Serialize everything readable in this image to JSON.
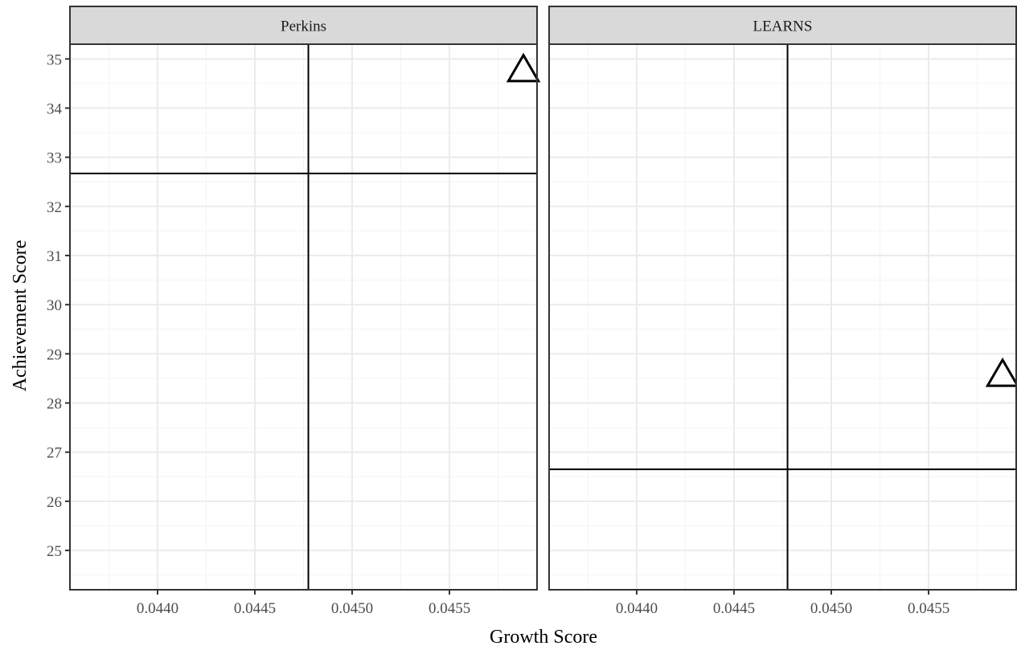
{
  "chart_data": {
    "type": "scatter",
    "xlabel": "Growth Score",
    "ylabel": "Achievement Score",
    "xlim": [
      0.04355,
      0.04595
    ],
    "ylim": [
      24.2,
      35.3
    ],
    "x_ticks": [
      "0.0440",
      "0.0445",
      "0.0450",
      "0.0455"
    ],
    "y_ticks": [
      "25",
      "26",
      "27",
      "28",
      "29",
      "30",
      "31",
      "32",
      "33",
      "34",
      "35"
    ],
    "grid": true,
    "point_shape": "open-triangle",
    "panels": [
      {
        "facet": "Perkins",
        "points": [
          {
            "x": 0.04588,
            "y": 34.8
          }
        ],
        "vline_x": 0.044775,
        "hline_y": 32.67
      },
      {
        "facet": "LEARNS",
        "points": [
          {
            "x": 0.04588,
            "y": 28.6
          }
        ],
        "vline_x": 0.044775,
        "hline_y": 26.65
      }
    ]
  }
}
